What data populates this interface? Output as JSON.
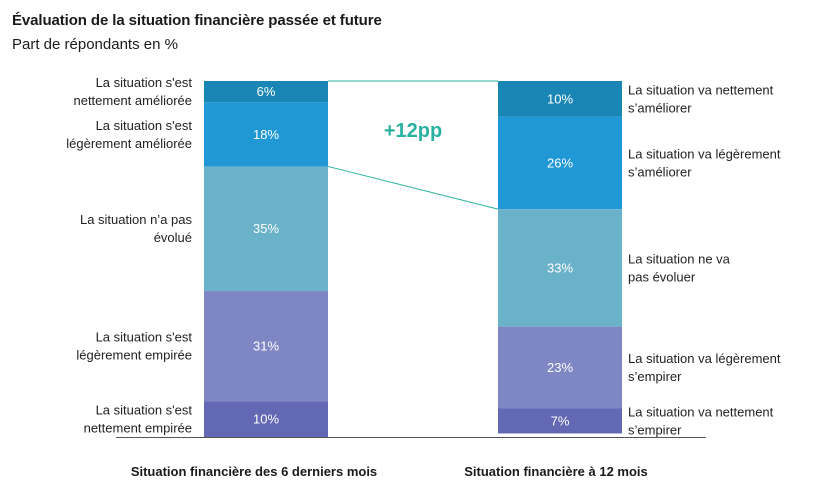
{
  "header": {
    "title": "Évaluation de la situation financière passée et future",
    "subtitle": "Part de répondants en %"
  },
  "chart_data": {
    "type": "bar",
    "stacked": true,
    "unit": "%",
    "categories": [
      "Situation financière des 6 derniers mois",
      "Situation financière à 12 mois"
    ],
    "series": [
      {
        "values": [
          6,
          10
        ],
        "color": "#1a86b6",
        "labels": [
          [
            "La situation s'est",
            "nettement améliorée"
          ],
          [
            "La situation va nettement",
            "s’améliorer"
          ]
        ],
        "value_labels": [
          "6%",
          "10%"
        ]
      },
      {
        "values": [
          18,
          26
        ],
        "color": "#2198d6",
        "labels": [
          [
            "La situation s'est",
            "légèrement améliorée"
          ],
          [
            "La situation va légèrement",
            "s’améliorer"
          ]
        ],
        "value_labels": [
          "18%",
          "26%"
        ]
      },
      {
        "values": [
          35,
          33
        ],
        "color": "#6ab2c9",
        "labels": [
          [
            "La situation n’a pas",
            "évolué"
          ],
          [
            "La situation ne va",
            "pas évoluer"
          ]
        ],
        "value_labels": [
          "35%",
          "33%"
        ]
      },
      {
        "values": [
          31,
          23
        ],
        "color": "#7f86c4",
        "labels": [
          [
            "La situation s'est",
            "légèrement empirée"
          ],
          [
            "La situation va légèrement",
            "s’empirer"
          ]
        ],
        "value_labels": [
          "31%",
          "23%"
        ]
      },
      {
        "values": [
          10,
          7
        ],
        "color": "#6268b3",
        "labels": [
          [
            "La situation s'est",
            "nettement empirée"
          ],
          [
            "La situation va nettement",
            "s’empirer"
          ]
        ],
        "value_labels": [
          "10%",
          "7%"
        ]
      }
    ],
    "annotation": {
      "text": "+12pp",
      "color": "#2bb1a2"
    },
    "connector_color": "#2bb1a2"
  }
}
